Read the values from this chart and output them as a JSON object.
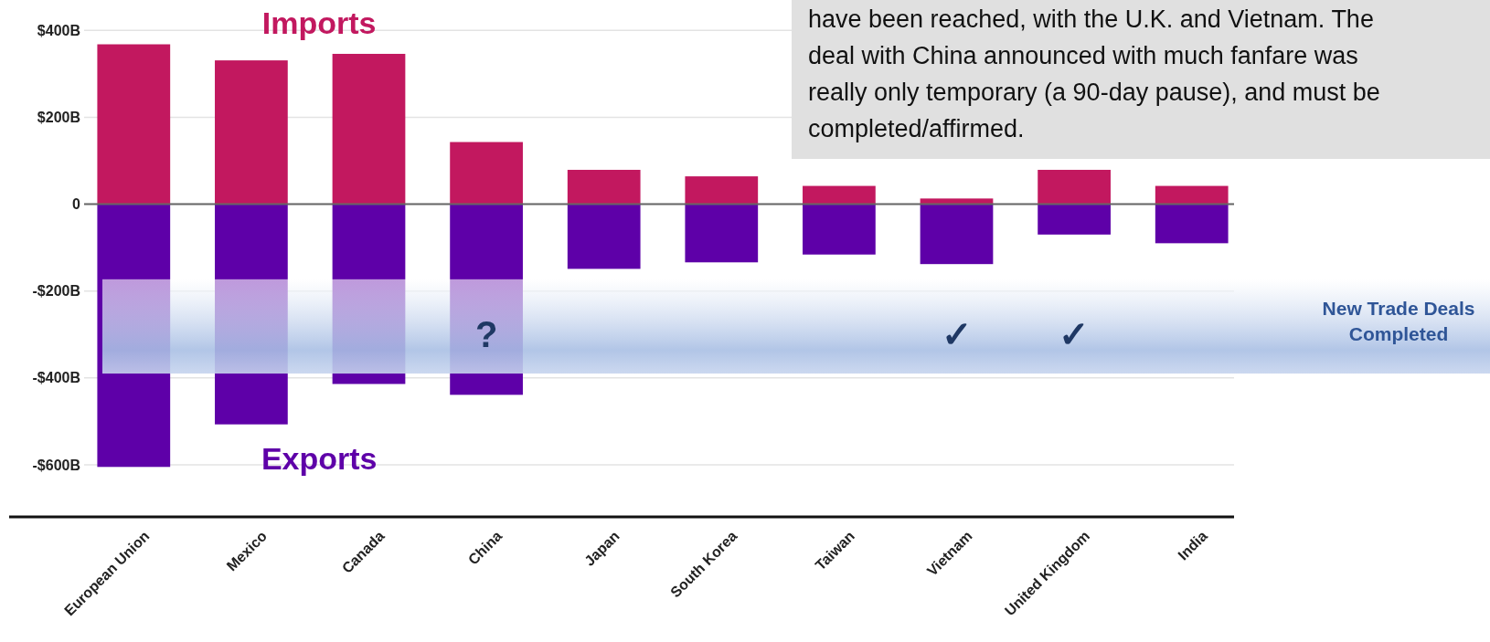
{
  "chart_data": {
    "type": "bar",
    "categories": [
      "European Union",
      "Mexico",
      "Canada",
      "China",
      "Japan",
      "South Korea",
      "Taiwan",
      "Vietnam",
      "United Kingdom",
      "India"
    ],
    "series": [
      {
        "name": "Imports",
        "color": "#c2185f",
        "values": [
          368,
          331,
          346,
          143,
          79,
          64,
          42,
          13,
          79,
          42
        ]
      },
      {
        "name": "Exports",
        "color": "#5e00a8",
        "values": [
          -605,
          -507,
          -414,
          -439,
          -149,
          -134,
          -116,
          -138,
          -70,
          -90
        ]
      }
    ],
    "ylim": [
      -720,
      470
    ],
    "yticks": [
      {
        "value": -600,
        "label": "-$600B"
      },
      {
        "value": -400,
        "label": "-$400B"
      },
      {
        "value": -200,
        "label": "-$200B"
      },
      0,
      {
        "value": 200,
        "label": "$200B"
      },
      {
        "value": 400,
        "label": "$400B"
      }
    ],
    "grid": "y",
    "legend": false,
    "stacked": true,
    "bands": [
      {
        "axis": "y",
        "from": -390,
        "to": -173,
        "label": "New Trade Deals Completed",
        "color": "#a9bfe4"
      }
    ],
    "annotations": [
      "?",
      "✓",
      "✓",
      "have been reached, with the U.K. and Vietnam. The\ndeal with China announced with much fanfare was\nreally only temporary (a 90-day pause), and must be\ncompleted/affirmed."
    ]
  }
}
